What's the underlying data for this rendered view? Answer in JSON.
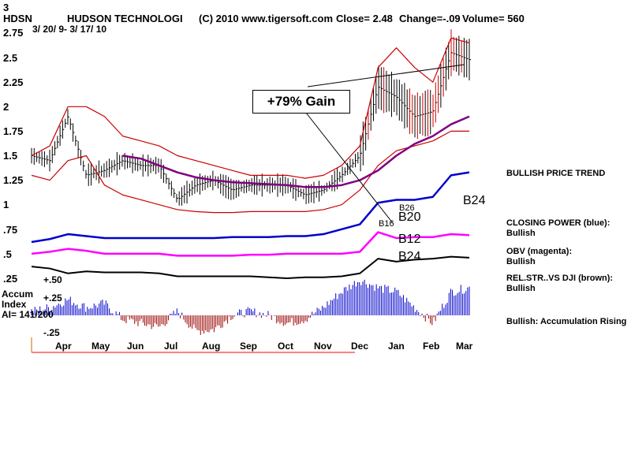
{
  "header": {
    "number": "3",
    "symbol": "HDSN",
    "company": "HUDSON TECHNOLOGI",
    "copyright": "(C) 2010 www.tigersoft.com",
    "close": "Close=  2.48",
    "change": "Change=-.09",
    "volume": "Volume= 560",
    "date_range": "3/ 20/ 9- 3/ 17/ 10"
  },
  "annotation": {
    "gain": "+79% Gain"
  },
  "indicator_labels": {
    "accum": "Accum",
    "index": "Index",
    "ai": "AI= 141/200",
    "p50": "+.50",
    "p25": "+.25",
    "m25": "-.25"
  },
  "signals": {
    "b24_top": "B24",
    "b26": "B26",
    "b20": "B20",
    "b16": "B16",
    "b12": "B12",
    "b24_low": "B24"
  },
  "right_panel": {
    "trend": "BULLISH PRICE TREND",
    "cp_title": "CLOSING POWER (blue):",
    "cp_value": "Bullish",
    "obv_title": "OBV (magenta):",
    "obv_value": "Bullish",
    "rs_title": "REL.STR..VS DJI (brown):",
    "rs_value": "Bullish",
    "accum": "Bullish: Accumulation Rising"
  },
  "colors": {
    "price": "#000000",
    "bands": "#cc0000",
    "ma": "#800080",
    "closing_power": "#0000cc",
    "obv": "#ff00ff",
    "rel_str": "#000000",
    "accum_pos": "#0000cc",
    "accum_neg": "#990000",
    "baseline": "#ff0000"
  },
  "chart_data": {
    "type": "line",
    "title": "HUDSON TECHNOLOGI",
    "xlabel": "",
    "ylabel": "",
    "ylim": [
      0.1,
      2.8
    ],
    "y_ticks": [
      "2.75",
      "2.5",
      "2.25",
      "2",
      "1.75",
      "1.5",
      "1.25",
      "1",
      ".75",
      ".5",
      ".25"
    ],
    "y_tick_values": [
      2.75,
      2.5,
      2.25,
      2.0,
      1.75,
      1.5,
      1.25,
      1.0,
      0.75,
      0.5,
      0.25
    ],
    "x_ticks": [
      "Apr",
      "May",
      "Jun",
      "Jul",
      "Aug",
      "Sep",
      "Oct",
      "Nov",
      "Dec",
      "Jan",
      "Feb",
      "Mar"
    ],
    "x_tick_pos": [
      1,
      3,
      5,
      7,
      9,
      11,
      13,
      15,
      17,
      19,
      21,
      23
    ],
    "grid": false,
    "x": [
      0,
      1,
      2,
      3,
      4,
      5,
      6,
      7,
      8,
      9,
      10,
      11,
      12,
      13,
      14,
      15,
      16,
      17,
      18,
      19,
      20,
      21,
      22,
      23,
      24
    ],
    "series": [
      {
        "name": "price",
        "values": [
          1.5,
          1.45,
          1.9,
          1.3,
          1.35,
          1.45,
          1.4,
          1.4,
          1.05,
          1.2,
          1.25,
          1.15,
          1.2,
          1.2,
          1.2,
          1.1,
          1.15,
          1.3,
          1.5,
          2.2,
          2.1,
          1.9,
          1.95,
          2.55,
          2.48
        ]
      },
      {
        "name": "upper_band",
        "values": [
          1.5,
          1.6,
          2.0,
          2.0,
          1.9,
          1.7,
          1.65,
          1.6,
          1.5,
          1.45,
          1.4,
          1.35,
          1.3,
          1.3,
          1.3,
          1.27,
          1.3,
          1.4,
          1.6,
          2.4,
          2.6,
          2.4,
          2.25,
          2.7,
          2.65
        ]
      },
      {
        "name": "lower_band",
        "values": [
          1.3,
          1.25,
          1.45,
          1.5,
          1.2,
          1.1,
          1.05,
          1.0,
          0.95,
          0.93,
          0.92,
          0.92,
          0.93,
          0.93,
          0.93,
          0.93,
          0.95,
          1.0,
          1.15,
          1.4,
          1.55,
          1.6,
          1.65,
          1.75,
          1.75
        ]
      },
      {
        "name": "moving_average",
        "values": [
          null,
          null,
          null,
          null,
          null,
          1.5,
          1.47,
          1.4,
          1.33,
          1.28,
          1.25,
          1.23,
          1.22,
          1.21,
          1.2,
          1.18,
          1.18,
          1.2,
          1.25,
          1.35,
          1.5,
          1.62,
          1.7,
          1.82,
          1.9
        ]
      },
      {
        "name": "closing_power",
        "values": [
          0.62,
          0.65,
          0.7,
          0.68,
          0.66,
          0.66,
          0.66,
          0.66,
          0.66,
          0.66,
          0.66,
          0.67,
          0.67,
          0.67,
          0.68,
          0.68,
          0.7,
          0.75,
          0.8,
          1.02,
          1.05,
          1.05,
          1.08,
          1.3,
          1.33
        ]
      },
      {
        "name": "obv",
        "values": [
          0.5,
          0.52,
          0.55,
          0.53,
          0.5,
          0.5,
          0.5,
          0.5,
          0.48,
          0.48,
          0.48,
          0.48,
          0.49,
          0.49,
          0.5,
          0.5,
          0.5,
          0.5,
          0.52,
          0.72,
          0.66,
          0.67,
          0.67,
          0.7,
          0.69
        ]
      },
      {
        "name": "rel_str",
        "values": [
          0.37,
          0.35,
          0.3,
          0.32,
          0.31,
          0.31,
          0.31,
          0.3,
          0.27,
          0.27,
          0.27,
          0.27,
          0.27,
          0.26,
          0.25,
          0.26,
          0.26,
          0.27,
          0.3,
          0.45,
          0.42,
          0.44,
          0.45,
          0.47,
          0.46
        ]
      }
    ],
    "accumulation_index": [
      0.05,
      0.1,
      0.2,
      0.1,
      0.15,
      -0.05,
      -0.1,
      -0.15,
      0.05,
      -0.2,
      -0.18,
      0.0,
      0.05,
      0.0,
      -0.1,
      -0.05,
      0.1,
      0.3,
      0.45,
      0.35,
      0.3,
      0.1,
      -0.1,
      0.3,
      0.35
    ]
  }
}
